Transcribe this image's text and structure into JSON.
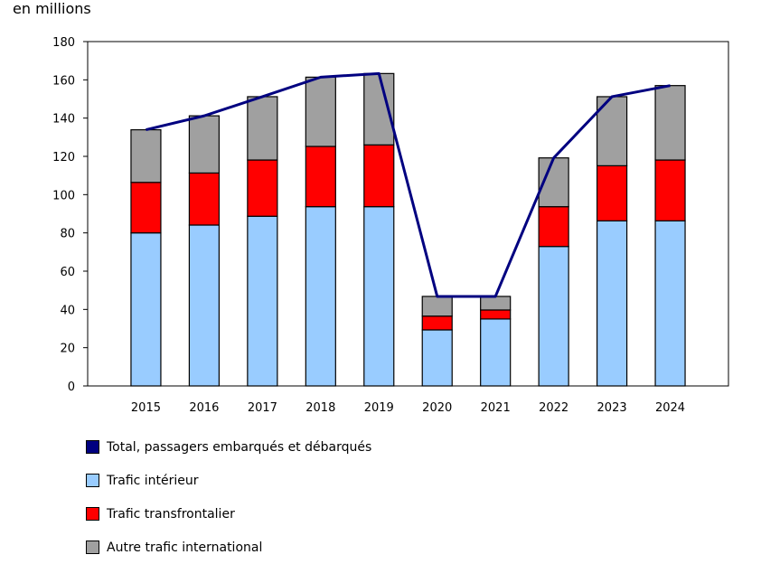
{
  "chart_data": {
    "type": "bar",
    "stacked": true,
    "ylabel": "en millions",
    "ylim": [
      0,
      180
    ],
    "yticks": [
      0,
      20,
      40,
      60,
      80,
      100,
      120,
      140,
      160,
      180
    ],
    "grid": false,
    "legend_position": "bottom",
    "categories": [
      "2015",
      "2016",
      "2017",
      "2018",
      "2019",
      "2020",
      "2021",
      "2022",
      "2023",
      "2024"
    ],
    "series": [
      {
        "name": "Trafic intérieur",
        "type": "bar",
        "color": "#99ccff",
        "values": [
          80.0,
          84.1,
          88.7,
          93.7,
          93.7,
          29.3,
          35.0,
          72.9,
          86.3,
          86.3
        ]
      },
      {
        "name": "Trafic transfrontalier",
        "type": "bar",
        "color": "#ff0000",
        "values": [
          26.4,
          27.2,
          29.4,
          31.5,
          32.3,
          7.2,
          4.7,
          20.8,
          28.8,
          31.8
        ]
      },
      {
        "name": "Autre trafic international",
        "type": "bar",
        "color": "#a0a0a0",
        "values": [
          27.5,
          29.9,
          33.1,
          36.2,
          37.3,
          10.3,
          7.1,
          25.5,
          36.1,
          38.9
        ]
      },
      {
        "name": "Total, passagers embarqués et débarqués",
        "type": "line",
        "color": "#000080",
        "values": [
          133.9,
          141.2,
          151.2,
          161.4,
          163.3,
          46.8,
          46.8,
          119.2,
          151.2,
          157.0
        ]
      }
    ],
    "legend_order": [
      3,
      0,
      1,
      2
    ]
  }
}
